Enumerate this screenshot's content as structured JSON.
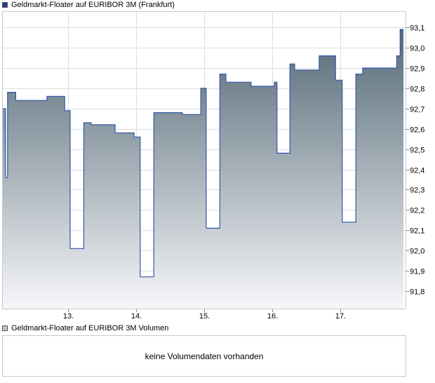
{
  "chart_data": {
    "type": "area",
    "title": "Geldmarkt-Floater auf EURIBOR 3M (Frankfurt)",
    "xlabel": "",
    "ylabel": "",
    "ylim": [
      91.71,
      93.18
    ],
    "y_ticks": [
      "93,1",
      "93,0",
      "92,9",
      "92,8",
      "92,7",
      "92,6",
      "92,5",
      "92,4",
      "92,3",
      "92,2",
      "92,1",
      "92,0",
      "91,9",
      "91,8"
    ],
    "y_tick_values": [
      93.1,
      93.0,
      92.9,
      92.8,
      92.7,
      92.6,
      92.5,
      92.4,
      92.3,
      92.2,
      92.1,
      92.0,
      91.9,
      91.8
    ],
    "x_range": [
      12.03,
      17.97
    ],
    "x_ticks": [
      "13.",
      "14.",
      "15.",
      "16.",
      "17."
    ],
    "x_tick_values": [
      13,
      14,
      15,
      16,
      17
    ],
    "grid": true,
    "colors": {
      "line": "#3355aa",
      "fill_top": "#556a76",
      "fill_bottom": "#f7f7fa",
      "grid": "#dddddd"
    },
    "series": [
      {
        "name": "Geldmarkt-Floater auf EURIBOR 3M (Frankfurt)",
        "points": [
          [
            12.03,
            92.7
          ],
          [
            12.08,
            92.7
          ],
          [
            12.08,
            92.36
          ],
          [
            12.11,
            92.36
          ],
          [
            12.11,
            92.78
          ],
          [
            12.23,
            92.78
          ],
          [
            12.23,
            92.74
          ],
          [
            12.69,
            92.74
          ],
          [
            12.69,
            92.76
          ],
          [
            12.95,
            92.76
          ],
          [
            12.95,
            92.69
          ],
          [
            13.03,
            92.69
          ],
          [
            13.03,
            92.01
          ],
          [
            13.23,
            92.01
          ],
          [
            13.23,
            92.63
          ],
          [
            13.34,
            92.63
          ],
          [
            13.34,
            92.62
          ],
          [
            13.69,
            92.62
          ],
          [
            13.69,
            92.58
          ],
          [
            13.97,
            92.58
          ],
          [
            13.97,
            92.56
          ],
          [
            14.06,
            92.56
          ],
          [
            14.06,
            91.87
          ],
          [
            14.26,
            91.87
          ],
          [
            14.26,
            92.68
          ],
          [
            14.68,
            92.68
          ],
          [
            14.68,
            92.67
          ],
          [
            14.95,
            92.67
          ],
          [
            14.95,
            92.8
          ],
          [
            15.03,
            92.8
          ],
          [
            15.03,
            92.11
          ],
          [
            15.23,
            92.11
          ],
          [
            15.23,
            92.87
          ],
          [
            15.32,
            92.87
          ],
          [
            15.32,
            92.83
          ],
          [
            15.69,
            92.83
          ],
          [
            15.69,
            92.81
          ],
          [
            16.03,
            92.81
          ],
          [
            16.03,
            92.83
          ],
          [
            16.07,
            92.83
          ],
          [
            16.07,
            92.48
          ],
          [
            16.26,
            92.48
          ],
          [
            16.26,
            92.92
          ],
          [
            16.33,
            92.92
          ],
          [
            16.33,
            92.89
          ],
          [
            16.69,
            92.89
          ],
          [
            16.69,
            92.96
          ],
          [
            16.93,
            92.96
          ],
          [
            16.93,
            92.84
          ],
          [
            17.03,
            92.84
          ],
          [
            17.03,
            92.14
          ],
          [
            17.23,
            92.14
          ],
          [
            17.23,
            92.87
          ],
          [
            17.33,
            92.87
          ],
          [
            17.33,
            92.9
          ],
          [
            17.83,
            92.9
          ],
          [
            17.83,
            92.96
          ],
          [
            17.88,
            92.96
          ],
          [
            17.88,
            93.09
          ],
          [
            17.93,
            93.09
          ]
        ]
      }
    ],
    "legend": [
      {
        "label": "Geldmarkt-Floater auf EURIBOR 3M (Frankfurt)",
        "color": "#1f3b8f"
      },
      {
        "label": "Geldmarkt-Floater auf EURIBOR 3M Volumen",
        "color": "#c0c0c0"
      }
    ],
    "volume_message": "keine Volumendaten vorhanden"
  }
}
